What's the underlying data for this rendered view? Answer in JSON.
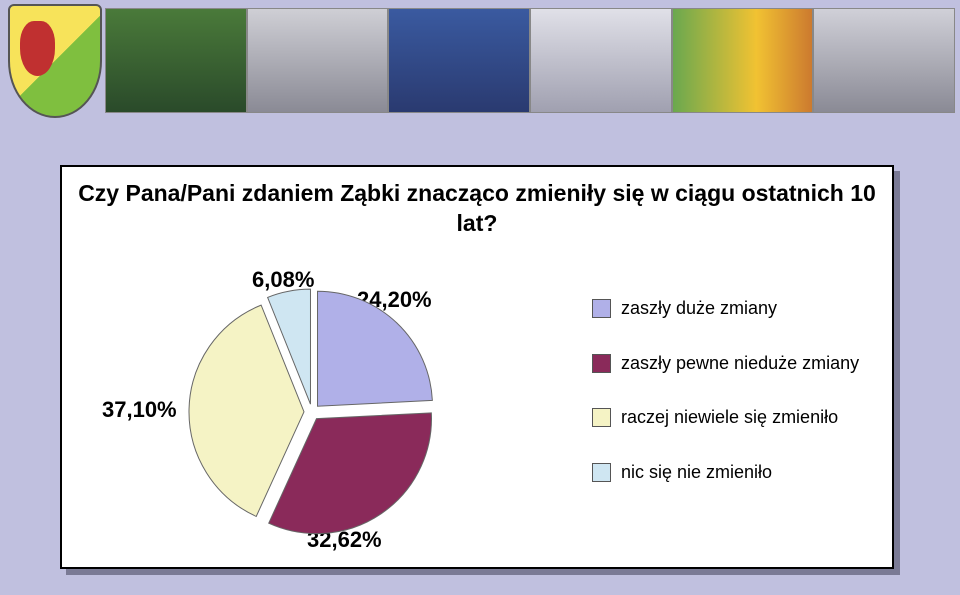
{
  "chart": {
    "type": "pie",
    "title": "Czy Pana/Pani zdaniem Ząbki znacząco zmieniły się w ciągu ostatnich 10 lat?",
    "background_color": "#ffffff",
    "page_background": "#c0c0df",
    "border_color": "#000000",
    "shadow_color": "#7a7a95",
    "title_fontsize": 23,
    "label_fontsize": 22,
    "legend_fontsize": 18,
    "slices": [
      {
        "label": "zaszły duże zmiany",
        "value": 24.2,
        "pct": "24,20%",
        "color": "#b0b0e8"
      },
      {
        "label": "zaszły pewne nieduże zmiany",
        "value": 32.62,
        "pct": "32,62%",
        "color": "#8a2a5a"
      },
      {
        "label": "raczej niewiele się zmieniło",
        "value": 37.1,
        "pct": "37,10%",
        "color": "#f5f3c5"
      },
      {
        "label": "nic się nie zmieniło",
        "value": 6.08,
        "pct": "6,08%",
        "color": "#cfe6f2"
      }
    ],
    "explode_gap": 8,
    "radius": 115,
    "start_angle_deg": -90
  }
}
